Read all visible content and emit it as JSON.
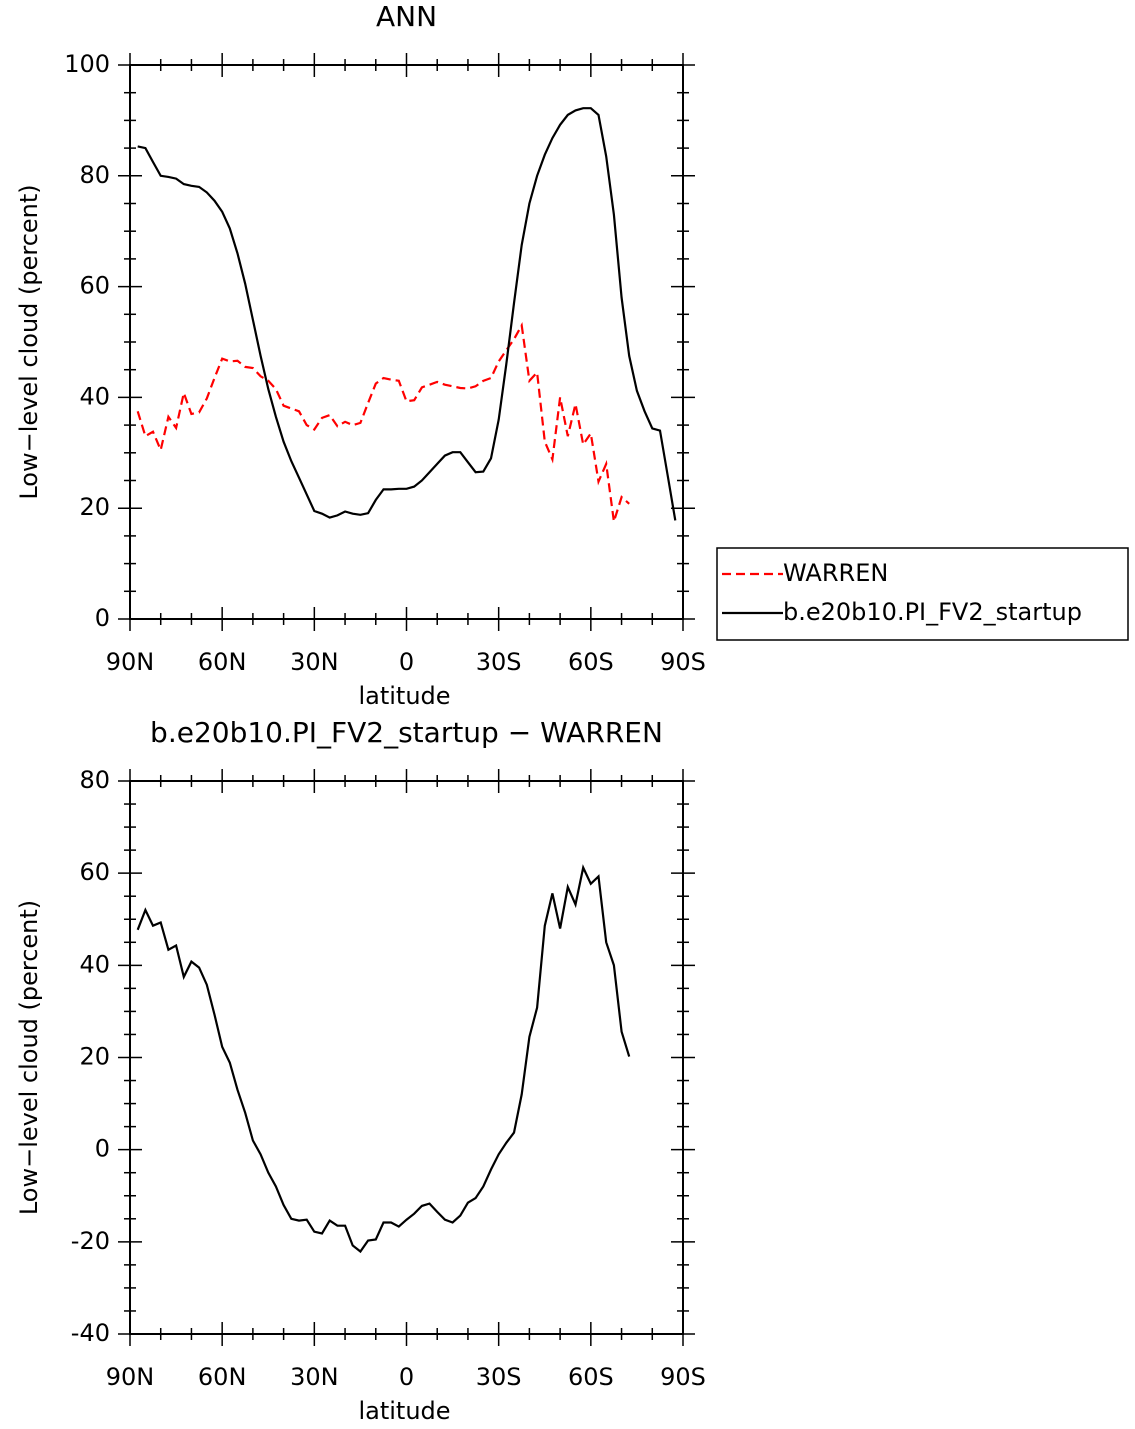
{
  "chart_data": [
    {
      "type": "line",
      "title": "ANN",
      "xlabel": "latitude",
      "ylabel": "Low−level cloud (percent)",
      "x": [
        87.5,
        85,
        82.5,
        80,
        77.5,
        75,
        72.5,
        70,
        67.5,
        65,
        62.5,
        60,
        57.5,
        55,
        52.5,
        50,
        47.5,
        45,
        42.5,
        40,
        37.5,
        35,
        32.5,
        30,
        27.5,
        25,
        22.5,
        20,
        17.5,
        15,
        12.5,
        10,
        7.5,
        5,
        2.5,
        0,
        -2.5,
        -5,
        -7.5,
        -10,
        -12.5,
        -15,
        -17.5,
        -20,
        -22.5,
        -25,
        -27.5,
        -30,
        -32.5,
        -35,
        -37.5,
        -40,
        -42.5,
        -45,
        -47.5,
        -50,
        -52.5,
        -55,
        -57.5,
        -60,
        -62.5,
        -65,
        -67.5,
        -70,
        -72.5,
        -75,
        -77.5,
        -80,
        -82.5,
        -85,
        -87.5
      ],
      "xlim": [
        90,
        -90
      ],
      "xticks": [
        {
          "value": 90,
          "label": "90N"
        },
        {
          "value": 60,
          "label": "60N"
        },
        {
          "value": 30,
          "label": "30N"
        },
        0,
        {
          "value": -30,
          "label": "30S"
        },
        {
          "value": -60,
          "label": "60S"
        },
        {
          "value": -90,
          "label": "90S"
        }
      ],
      "ylim": [
        0,
        100
      ],
      "yticks": [
        0,
        20,
        40,
        60,
        80,
        100
      ],
      "legend": "right",
      "series": [
        {
          "name": "WARREN",
          "color": "#ff0000",
          "dashed": true,
          "values": [
            37.5,
            33,
            33.8,
            30.5,
            36.5,
            34.5,
            40.8,
            37,
            37.3,
            39.8,
            43.5,
            47,
            46.5,
            46.6,
            45.5,
            45.3,
            43.8,
            43,
            41.5,
            38.5,
            38,
            37.5,
            35,
            34.2,
            36.3,
            36.8,
            34.8,
            35.6,
            35,
            35.4,
            39,
            42.5,
            43.5,
            43.2,
            43,
            39.3,
            39.5,
            41.8,
            42.3,
            42.8,
            42.3,
            42,
            41.7,
            41.6,
            42,
            43,
            43.5,
            46.5,
            48.5,
            50.5,
            53,
            43,
            44.5,
            32,
            28.8,
            40,
            33,
            38.8,
            31.5,
            33.5,
            24.8,
            28,
            17.6,
            22,
            20.8,
            null,
            null,
            null,
            null,
            null,
            null
          ]
        },
        {
          "name": "b.e20b10.PI_FV2_startup",
          "color": "#000000",
          "dashed": false,
          "values": [
            85.3,
            85,
            82.5,
            80,
            79.8,
            79.5,
            78.5,
            78.2,
            78,
            77,
            75.5,
            73.5,
            70.5,
            66,
            60.5,
            54,
            47.5,
            41.5,
            36.5,
            32,
            28.5,
            25.5,
            22.5,
            19.5,
            19,
            18.3,
            18.7,
            19.4,
            19,
            18.8,
            19.1,
            21.5,
            23.4,
            23.4,
            23.5,
            23.5,
            23.9,
            25,
            26.5,
            28,
            29.5,
            30.1,
            30.1,
            28.3,
            26.5,
            26.6,
            29,
            36,
            46,
            57,
            67.5,
            75,
            80,
            83.8,
            86.8,
            89.2,
            91,
            91.8,
            92.2,
            92.2,
            91,
            83.5,
            73,
            58,
            47.5,
            41.2,
            37.5,
            34.4,
            34,
            26,
            17.8
          ]
        }
      ]
    },
    {
      "type": "line",
      "title": "b.e20b10.PI_FV2_startup − WARREN",
      "xlabel": "latitude",
      "ylabel": "Low−level cloud (percent)",
      "x": [
        87.5,
        85,
        82.5,
        80,
        77.5,
        75,
        72.5,
        70,
        67.5,
        65,
        62.5,
        60,
        57.5,
        55,
        52.5,
        50,
        47.5,
        45,
        42.5,
        40,
        37.5,
        35,
        32.5,
        30,
        27.5,
        25,
        22.5,
        20,
        17.5,
        15,
        12.5,
        10,
        7.5,
        5,
        2.5,
        0,
        -2.5,
        -5,
        -7.5,
        -10,
        -12.5,
        -15,
        -17.5,
        -20,
        -22.5,
        -25,
        -27.5,
        -30,
        -32.5,
        -35,
        -37.5,
        -40,
        -42.5,
        -45,
        -47.5,
        -50,
        -52.5,
        -55,
        -57.5,
        -60,
        -62.5,
        -65,
        -67.5,
        -70,
        -72.5
      ],
      "xlim": [
        90,
        -90
      ],
      "xticks": [
        {
          "value": 90,
          "label": "90N"
        },
        {
          "value": 60,
          "label": "60N"
        },
        {
          "value": 30,
          "label": "30N"
        },
        0,
        {
          "value": -30,
          "label": "30S"
        },
        {
          "value": -60,
          "label": "60S"
        },
        {
          "value": -90,
          "label": "90S"
        }
      ],
      "ylim": [
        -40,
        80
      ],
      "yticks": [
        -40,
        -20,
        0,
        20,
        40,
        60,
        80
      ],
      "color": "#000000",
      "values": [
        47.7,
        52,
        48.6,
        49.3,
        43.4,
        44.3,
        37.5,
        40.8,
        39.5,
        35.8,
        29.3,
        22.3,
        18.9,
        13,
        8,
        2,
        -1,
        -5,
        -8,
        -12,
        -15,
        -15.4,
        -15.2,
        -17.8,
        -18.2,
        -15.4,
        -16.5,
        -16.5,
        -20.8,
        -22.1,
        -19.7,
        -19.5,
        -15.8,
        -15.8,
        -16.7,
        -15.2,
        -13.9,
        -12.2,
        -11.7,
        -13.5,
        -15.2,
        -15.8,
        -14.3,
        -11.5,
        -10.5,
        -8,
        -4.3,
        -1,
        1.5,
        3.7,
        12,
        24.5,
        30.8,
        48.6,
        55.6,
        48,
        57,
        53.2,
        61.2,
        57.7,
        59.3,
        45,
        40,
        25.6,
        20.2
      ]
    }
  ]
}
